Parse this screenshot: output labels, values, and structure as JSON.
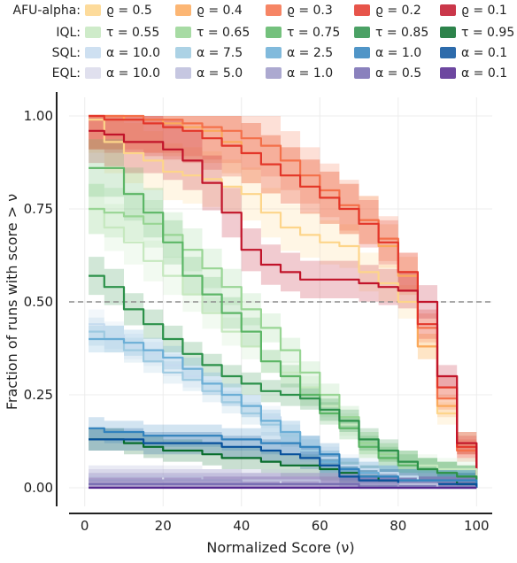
{
  "chart_data": {
    "type": "line",
    "title": "",
    "xlabel": "Normalized Score (ν)",
    "ylabel": "Fraction of runs with score > ν",
    "xlim": [
      -4,
      104
    ],
    "ylim": [
      -0.05,
      1.05
    ],
    "x_ticks": [
      0,
      20,
      40,
      60,
      80,
      100
    ],
    "y_ticks": [
      0.0,
      0.25,
      0.5,
      0.75,
      1.0
    ],
    "x_tick_labels": [
      "0",
      "20",
      "40",
      "60",
      "80",
      "100"
    ],
    "y_tick_labels": [
      "0.00",
      "0.25",
      "0.50",
      "0.75",
      "1.00"
    ],
    "grid": true,
    "reference_line": {
      "y": 0.5,
      "style": "dashed"
    },
    "legend_position": "top",
    "legend_rows": [
      {
        "label": "AFU-alpha:",
        "series": [
          "AFU ρ=0.5",
          "AFU ρ=0.4",
          "AFU ρ=0.3",
          "AFU ρ=0.2",
          "AFU ρ=0.1"
        ]
      },
      {
        "label": "IQL:",
        "series": [
          "IQL τ=0.55",
          "IQL τ=0.65",
          "IQL τ=0.75",
          "IQL τ=0.85",
          "IQL τ=0.95"
        ]
      },
      {
        "label": "SQL:",
        "series": [
          "SQL α=10.0",
          "SQL α=7.5",
          "SQL α=2.5",
          "SQL α=1.0",
          "SQL α=0.1"
        ]
      },
      {
        "label": "EQL:",
        "series": [
          "EQL α=10.0",
          "EQL α=5.0",
          "EQL α=1.0",
          "EQL α=0.5",
          "EQL α=0.1"
        ]
      }
    ],
    "series": [
      {
        "name": "AFU ρ=0.5",
        "legend_text": "ϱ = 0.5",
        "color": "#fdd58a",
        "x": [
          1,
          5,
          10,
          15,
          20,
          25,
          30,
          35,
          40,
          45,
          50,
          55,
          60,
          65,
          70,
          75,
          80,
          85,
          90,
          95,
          100
        ],
        "values": [
          0.99,
          0.93,
          0.9,
          0.88,
          0.85,
          0.84,
          0.83,
          0.81,
          0.79,
          0.74,
          0.7,
          0.68,
          0.66,
          0.65,
          0.58,
          0.55,
          0.5,
          0.38,
          0.2,
          0.12,
          0.0
        ]
      },
      {
        "name": "AFU ρ=0.4",
        "legend_text": "ϱ = 0.4",
        "color": "#fba95c",
        "x": [
          1,
          5,
          10,
          15,
          20,
          25,
          30,
          35,
          40,
          45,
          50,
          55,
          60,
          65,
          70,
          75,
          80,
          85,
          90,
          95,
          100
        ],
        "values": [
          1.0,
          1.0,
          0.99,
          0.99,
          0.98,
          0.97,
          0.96,
          0.93,
          0.9,
          0.87,
          0.84,
          0.81,
          0.78,
          0.75,
          0.72,
          0.65,
          0.57,
          0.38,
          0.22,
          0.12,
          0.0
        ]
      },
      {
        "name": "AFU ρ=0.3",
        "legend_text": "ϱ = 0.3",
        "color": "#f4704a",
        "x": [
          1,
          5,
          10,
          15,
          20,
          25,
          30,
          35,
          40,
          45,
          50,
          55,
          60,
          65,
          70,
          75,
          80,
          85,
          90,
          95,
          100
        ],
        "values": [
          1.0,
          1.0,
          1.0,
          0.99,
          0.99,
          0.98,
          0.97,
          0.96,
          0.94,
          0.92,
          0.88,
          0.84,
          0.8,
          0.76,
          0.72,
          0.67,
          0.58,
          0.43,
          0.24,
          0.1,
          0.0
        ]
      },
      {
        "name": "AFU ρ=0.2",
        "legend_text": "ϱ = 0.2",
        "color": "#e3362a",
        "x": [
          1,
          5,
          10,
          15,
          20,
          25,
          30,
          35,
          40,
          45,
          50,
          55,
          60,
          65,
          70,
          75,
          80,
          85,
          90,
          95,
          100
        ],
        "values": [
          1.0,
          0.99,
          0.99,
          0.98,
          0.97,
          0.96,
          0.94,
          0.92,
          0.9,
          0.87,
          0.84,
          0.81,
          0.78,
          0.75,
          0.71,
          0.66,
          0.58,
          0.44,
          0.27,
          0.11,
          0.0
        ]
      },
      {
        "name": "AFU ρ=0.1",
        "legend_text": "ϱ = 0.1",
        "color": "#c1142a",
        "x": [
          1,
          5,
          10,
          15,
          20,
          25,
          30,
          35,
          40,
          45,
          50,
          55,
          60,
          65,
          70,
          75,
          80,
          85,
          90,
          95,
          100
        ],
        "values": [
          0.96,
          0.95,
          0.93,
          0.93,
          0.91,
          0.88,
          0.82,
          0.74,
          0.64,
          0.6,
          0.58,
          0.56,
          0.56,
          0.56,
          0.55,
          0.54,
          0.53,
          0.5,
          0.3,
          0.12,
          0.0
        ]
      },
      {
        "name": "IQL τ=0.55",
        "legend_text": "τ = 0.55",
        "color": "#c6e8bf",
        "x": [
          1,
          5,
          10,
          15,
          20,
          25,
          30,
          35,
          40,
          45,
          50,
          55,
          60,
          65,
          70,
          75,
          80,
          85,
          90,
          95,
          100
        ],
        "values": [
          0.75,
          0.7,
          0.66,
          0.61,
          0.57,
          0.52,
          0.47,
          0.42,
          0.38,
          0.34,
          0.31,
          0.27,
          0.22,
          0.17,
          0.12,
          0.09,
          0.07,
          0.06,
          0.05,
          0.05,
          0.0
        ]
      },
      {
        "name": "IQL τ=0.65",
        "legend_text": "τ = 0.65",
        "color": "#98d594",
        "x": [
          1,
          5,
          10,
          15,
          20,
          25,
          30,
          35,
          40,
          45,
          50,
          55,
          60,
          65,
          70,
          75,
          80,
          85,
          90,
          95,
          100
        ],
        "values": [
          0.75,
          0.74,
          0.73,
          0.71,
          0.68,
          0.64,
          0.59,
          0.54,
          0.48,
          0.43,
          0.37,
          0.31,
          0.25,
          0.19,
          0.12,
          0.09,
          0.07,
          0.05,
          0.04,
          0.03,
          0.0
        ]
      },
      {
        "name": "IQL τ=0.75",
        "legend_text": "τ = 0.75",
        "color": "#5cb666",
        "x": [
          1,
          5,
          10,
          15,
          20,
          25,
          30,
          35,
          40,
          45,
          50,
          55,
          60,
          65,
          70,
          75,
          80,
          85,
          90,
          95,
          100
        ],
        "values": [
          0.86,
          0.86,
          0.79,
          0.74,
          0.66,
          0.57,
          0.52,
          0.47,
          0.42,
          0.34,
          0.3,
          0.25,
          0.2,
          0.16,
          0.11,
          0.08,
          0.06,
          0.05,
          0.04,
          0.03,
          0.0
        ]
      },
      {
        "name": "IQL τ=0.85",
        "legend_text": "τ = 0.85",
        "color": "#2c914a",
        "x": [
          1,
          5,
          10,
          15,
          20,
          25,
          30,
          35,
          40,
          45,
          50,
          55,
          60,
          65,
          70,
          75,
          80,
          85,
          90,
          95,
          100
        ],
        "values": [
          0.57,
          0.54,
          0.48,
          0.44,
          0.4,
          0.36,
          0.33,
          0.3,
          0.28,
          0.26,
          0.25,
          0.24,
          0.21,
          0.18,
          0.13,
          0.1,
          0.07,
          0.05,
          0.04,
          0.03,
          0.0
        ]
      },
      {
        "name": "IQL τ=0.95",
        "legend_text": "τ = 0.95",
        "color": "#086d2c",
        "x": [
          1,
          5,
          10,
          15,
          20,
          25,
          30,
          35,
          40,
          45,
          50,
          55,
          60,
          65,
          70,
          75,
          80,
          85,
          90,
          95,
          100
        ],
        "values": [
          0.13,
          0.13,
          0.12,
          0.11,
          0.1,
          0.1,
          0.09,
          0.08,
          0.08,
          0.07,
          0.06,
          0.06,
          0.05,
          0.04,
          0.03,
          0.02,
          0.02,
          0.02,
          0.02,
          0.01,
          0.0
        ]
      },
      {
        "name": "SQL α=10.0",
        "legend_text": "α = 10.0",
        "color": "#c6dbef",
        "x": [
          1,
          5,
          10,
          15,
          20,
          25,
          30,
          35,
          40,
          45,
          50,
          55,
          60,
          65,
          70,
          75,
          80,
          85,
          90,
          95,
          100
        ],
        "values": [
          0.44,
          0.41,
          0.38,
          0.36,
          0.33,
          0.3,
          0.28,
          0.25,
          0.22,
          0.19,
          0.15,
          0.11,
          0.08,
          0.06,
          0.05,
          0.04,
          0.03,
          0.02,
          0.02,
          0.02,
          0.0
        ]
      },
      {
        "name": "SQL α=7.5",
        "legend_text": "α = 7.5",
        "color": "#9ecae1",
        "x": [
          1,
          5,
          10,
          15,
          20,
          25,
          30,
          35,
          40,
          45,
          50,
          55,
          60,
          65,
          70,
          75,
          80,
          85,
          90,
          95,
          100
        ],
        "values": [
          0.42,
          0.4,
          0.37,
          0.34,
          0.31,
          0.29,
          0.26,
          0.23,
          0.2,
          0.17,
          0.14,
          0.1,
          0.07,
          0.05,
          0.04,
          0.03,
          0.02,
          0.02,
          0.02,
          0.02,
          0.0
        ]
      },
      {
        "name": "SQL α=2.5",
        "legend_text": "α = 2.5",
        "color": "#6baed6",
        "x": [
          1,
          5,
          10,
          15,
          20,
          25,
          30,
          35,
          40,
          45,
          50,
          55,
          60,
          65,
          70,
          75,
          80,
          85,
          90,
          95,
          100
        ],
        "values": [
          0.4,
          0.4,
          0.39,
          0.37,
          0.35,
          0.32,
          0.28,
          0.25,
          0.22,
          0.18,
          0.15,
          0.11,
          0.07,
          0.05,
          0.04,
          0.03,
          0.02,
          0.02,
          0.02,
          0.02,
          0.0
        ]
      },
      {
        "name": "SQL α=1.0",
        "legend_text": "α = 1.0",
        "color": "#3182bd",
        "x": [
          1,
          5,
          10,
          15,
          20,
          25,
          30,
          35,
          40,
          45,
          50,
          55,
          60,
          65,
          70,
          75,
          80,
          85,
          90,
          95,
          100
        ],
        "values": [
          0.16,
          0.15,
          0.15,
          0.14,
          0.14,
          0.14,
          0.14,
          0.13,
          0.13,
          0.12,
          0.12,
          0.11,
          0.09,
          0.05,
          0.03,
          0.03,
          0.02,
          0.02,
          0.02,
          0.02,
          0.0
        ]
      },
      {
        "name": "SQL α=0.1",
        "legend_text": "α = 0.1",
        "color": "#08519c",
        "x": [
          1,
          5,
          10,
          15,
          20,
          25,
          30,
          35,
          40,
          45,
          50,
          55,
          60,
          65,
          70,
          75,
          80,
          85,
          90,
          95,
          100
        ],
        "values": [
          0.13,
          0.13,
          0.13,
          0.12,
          0.12,
          0.12,
          0.12,
          0.11,
          0.11,
          0.1,
          0.09,
          0.08,
          0.06,
          0.03,
          0.02,
          0.02,
          0.01,
          0.01,
          0.01,
          0.01,
          0.0
        ]
      },
      {
        "name": "EQL α=10.0",
        "legend_text": "α = 10.0",
        "color": "#dadaeb",
        "x": [
          1,
          10,
          20,
          30,
          40,
          50,
          60,
          70,
          80,
          90,
          100
        ],
        "values": [
          0.03,
          0.03,
          0.02,
          0.02,
          0.02,
          0.01,
          0.01,
          0.01,
          0.01,
          0.0,
          0.0
        ]
      },
      {
        "name": "EQL α=5.0",
        "legend_text": "α = 5.0",
        "color": "#bcbddc",
        "x": [
          1,
          10,
          20,
          30,
          40,
          50,
          60,
          70,
          80,
          90,
          100
        ],
        "values": [
          0.03,
          0.03,
          0.03,
          0.02,
          0.02,
          0.02,
          0.01,
          0.01,
          0.01,
          0.0,
          0.0
        ]
      },
      {
        "name": "EQL α=1.0",
        "legend_text": "α = 1.0",
        "color": "#9e9ac8",
        "x": [
          1,
          10,
          20,
          30,
          40,
          50,
          60,
          70,
          80,
          90,
          100
        ],
        "values": [
          0.02,
          0.02,
          0.02,
          0.02,
          0.01,
          0.01,
          0.01,
          0.01,
          0.0,
          0.0,
          0.0
        ]
      },
      {
        "name": "EQL α=0.5",
        "legend_text": "α = 0.5",
        "color": "#756bb1",
        "x": [
          1,
          10,
          20,
          30,
          40,
          50,
          60,
          70,
          80,
          90,
          100
        ],
        "values": [
          0.01,
          0.01,
          0.01,
          0.01,
          0.01,
          0.01,
          0.01,
          0.0,
          0.0,
          0.0,
          0.0
        ]
      },
      {
        "name": "EQL α=0.1",
        "legend_text": "α = 0.1",
        "color": "#54278f",
        "x": [
          1,
          10,
          20,
          30,
          40,
          50,
          60,
          70,
          80,
          90,
          100
        ],
        "values": [
          0.0,
          0.0,
          0.0,
          0.0,
          0.0,
          0.0,
          0.0,
          0.0,
          0.0,
          0.0,
          0.0
        ]
      }
    ]
  }
}
